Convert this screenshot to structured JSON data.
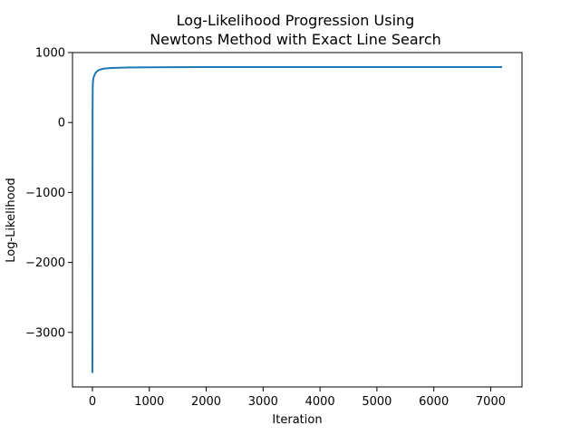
{
  "chart_data": {
    "type": "line",
    "title_line1": "Log-Likelihood Progression Using",
    "title_line2": "Newtons Method with Exact Line Search",
    "xlabel": "Iteration",
    "ylabel": "Log-Likelihood",
    "xlim": [
      -350,
      7550
    ],
    "ylim": [
      -3780,
      1000
    ],
    "xticks": [
      0,
      1000,
      2000,
      3000,
      4000,
      5000,
      6000,
      7000
    ],
    "xtick_labels": [
      "0",
      "1000",
      "2000",
      "3000",
      "4000",
      "5000",
      "6000",
      "7000"
    ],
    "yticks": [
      1000,
      0,
      -1000,
      -2000,
      -3000
    ],
    "ytick_labels": [
      "1000",
      "0",
      "−1000",
      "−2000",
      "−3000"
    ],
    "grid": false,
    "line_color": "#1f77b4",
    "series": [
      {
        "x": [
          0,
          1,
          2,
          3,
          5,
          8,
          12,
          18,
          25,
          35,
          50,
          70,
          100,
          150,
          200,
          300,
          400,
          600,
          800,
          1000,
          1500,
          2000,
          3000,
          4000,
          5000,
          6000,
          7000,
          7200
        ],
        "y": [
          -3580,
          -2000,
          -800,
          100,
          480,
          560,
          600,
          630,
          655,
          675,
          700,
          725,
          745,
          760,
          770,
          778,
          782,
          786,
          788,
          790,
          791,
          792,
          792,
          792,
          792,
          792,
          792,
          792
        ]
      }
    ]
  }
}
